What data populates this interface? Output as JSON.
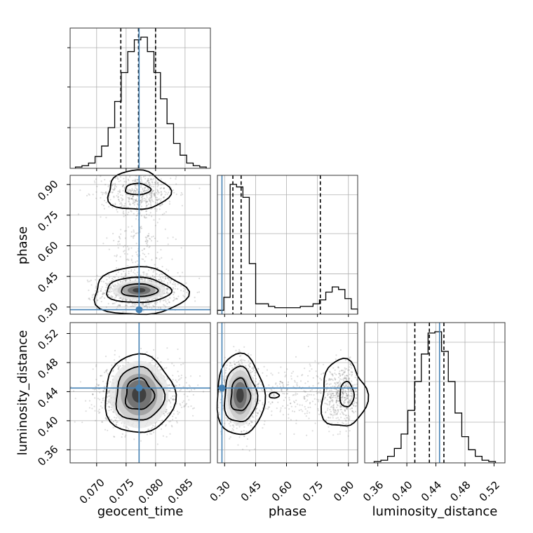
{
  "chart_data": {
    "type": "corner",
    "parameters": [
      "geocent_time",
      "phase",
      "luminosity_distance"
    ],
    "axis_labels": {
      "geocent_time": "geocent_time",
      "phase": "phase",
      "luminosity_distance": "luminosity_distance"
    },
    "ranges": {
      "geocent_time": [
        0.0655,
        0.0893
      ],
      "phase": [
        0.265,
        0.945
      ],
      "luminosity_distance": [
        0.342,
        0.535
      ]
    },
    "ticks": {
      "geocent_time": [
        "0.070",
        "0.075",
        "0.080",
        "0.085"
      ],
      "phase": [
        "0.30",
        "0.45",
        "0.60",
        "0.75",
        "0.90"
      ],
      "luminosity_distance": [
        "0.36",
        "0.40",
        "0.44",
        "0.48",
        "0.52"
      ]
    },
    "truths": {
      "geocent_time": 0.0772,
      "phase": 0.287,
      "luminosity_distance": 0.445
    },
    "quantiles": {
      "geocent_time": [
        0.0741,
        0.0771,
        0.08
      ],
      "phase": [
        0.34,
        0.38,
        0.764
      ],
      "luminosity_distance": [
        0.411,
        0.431,
        0.451
      ]
    },
    "histograms": {
      "geocent_time": [
        1,
        2,
        4,
        9,
        17,
        31,
        51,
        73,
        89,
        98,
        100,
        89,
        73,
        53,
        34,
        19,
        10,
        4,
        2,
        1
      ],
      "phase": [
        3,
        13,
        100,
        98,
        90,
        39,
        8,
        8,
        6,
        5,
        5,
        5,
        5,
        6,
        6,
        8,
        11,
        17,
        21,
        19,
        12,
        4
      ],
      "luminosity_distance": [
        1,
        2,
        5,
        11,
        22,
        40,
        62,
        83,
        99,
        100,
        85,
        62,
        38,
        20,
        10,
        5,
        2,
        1
      ]
    },
    "grid": true
  }
}
